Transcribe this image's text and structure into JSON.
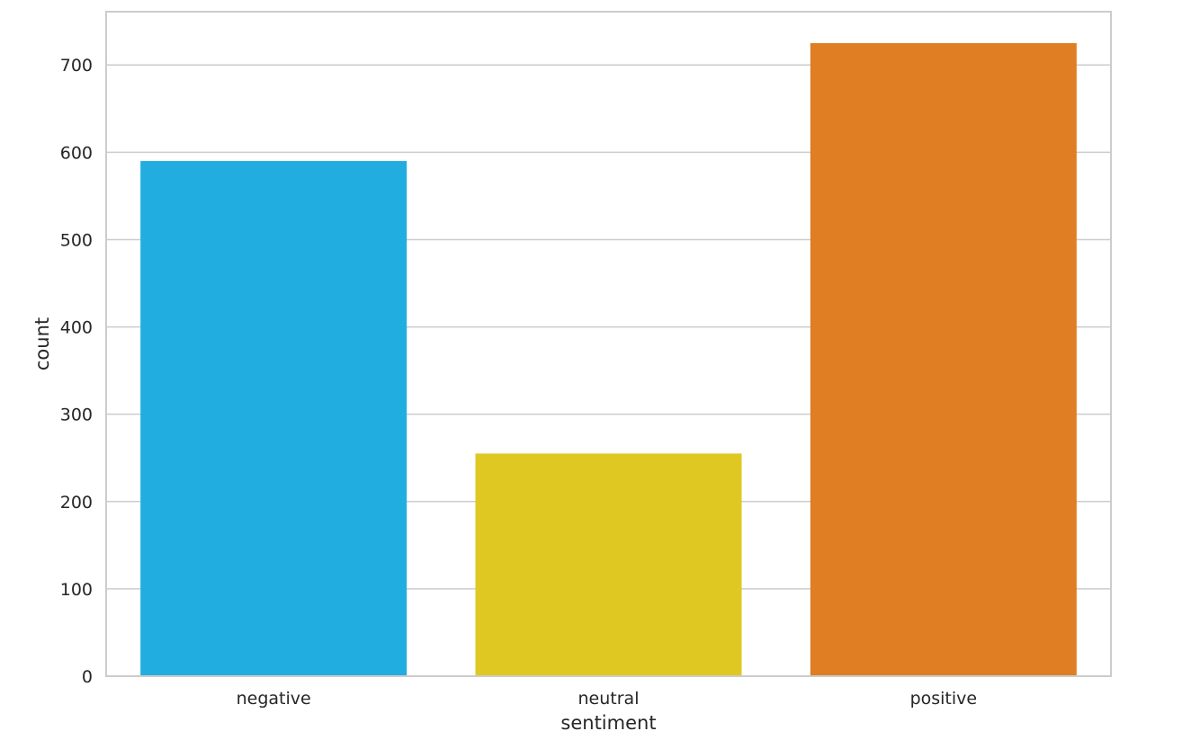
{
  "chart_data": {
    "type": "bar",
    "xlabel": "sentiment",
    "ylabel": "count",
    "categories": [
      "negative",
      "neutral",
      "positive"
    ],
    "values": [
      590,
      255,
      725
    ],
    "bar_colors": [
      "#22ade0",
      "#dfc822",
      "#df7e22"
    ],
    "ylim": [
      0,
      761
    ],
    "yticks": [
      0,
      100,
      200,
      300,
      400,
      500,
      600,
      700
    ],
    "grid": true,
    "grid_axis": "y",
    "legend": "none",
    "style": {
      "background": "#ffffff",
      "grid_color": "#cccccc",
      "spine_color": "#cccccc",
      "text_color": "#262626"
    }
  }
}
